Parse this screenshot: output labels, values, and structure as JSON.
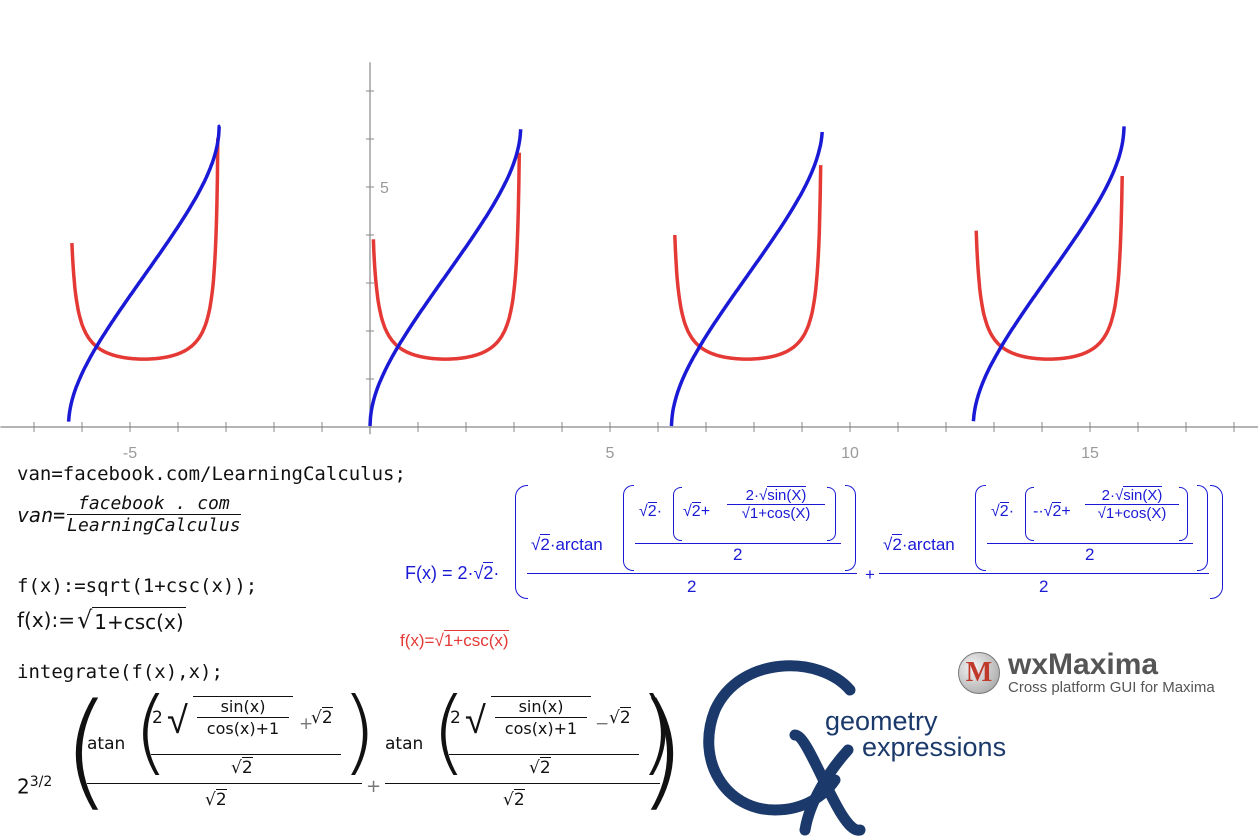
{
  "chart_data": {
    "type": "line",
    "x_ticks": [
      -5,
      5,
      10,
      15
    ],
    "y_ticks": [
      5
    ],
    "xlim": [
      -7.7,
      18.5
    ],
    "ylim": [
      -0.15,
      7.6
    ],
    "series": [
      {
        "color": "#e53935",
        "segments": [
          {
            "from": -6.21,
            "to": -3.17
          },
          {
            "from": 0.07,
            "to": 3.11
          },
          {
            "from": 6.35,
            "to": 9.39
          },
          {
            "from": 12.63,
            "to": 15.67
          }
        ]
      },
      {
        "color": "#1a1ad6",
        "segments": [
          {
            "from": -6.28,
            "to": -3.12
          },
          {
            "from": 0.0,
            "to": 3.14
          },
          {
            "from": 6.28,
            "to": 9.42
          },
          {
            "from": 12.57,
            "to": 15.71
          }
        ]
      }
    ]
  },
  "cas": {
    "line1_input": "van=facebook.com/LearningCalculus;",
    "line1_out_lhs": "van=",
    "line1_out_num": "facebook . com",
    "line1_out_den": "LearningCalculus",
    "line2_input": "f(x):=sqrt(1+csc(x));",
    "line2_out_lhs": "f(x):=",
    "line2_out_rad": "1+csc(x)",
    "line3_input": "integrate(f(x),x);",
    "result_coef": "2",
    "result_exp": "3/2",
    "atan": "atan",
    "two": "2",
    "sinx": "sin(x)",
    "cosx1": "cos(x)+1",
    "plus": "+",
    "minus": "−",
    "sqrt2_rad": "2"
  },
  "blue_formula": {
    "lhs": "F(x) = 2·",
    "sqrt2": "2",
    "arctan": "·arctan",
    "sinX": "sin(X)",
    "cosX": "1+cos(X)",
    "two": "2",
    "dot": "·",
    "plus": "+",
    "neg": "-"
  },
  "red_formula": {
    "lhs": "f(x)=",
    "rad": "1+csc(x)"
  },
  "wxmaxima": {
    "icon": "M",
    "title": "wxMaxima",
    "subtitle": "Cross platform GUI for Maxima"
  },
  "gx": {
    "line1": "geometry",
    "line2": "expressions"
  },
  "colors": {
    "red_curve": "#e53935",
    "blue_curve": "#1a1ad6",
    "gx_blue": "#1b3a6b",
    "axis": "#888888"
  }
}
